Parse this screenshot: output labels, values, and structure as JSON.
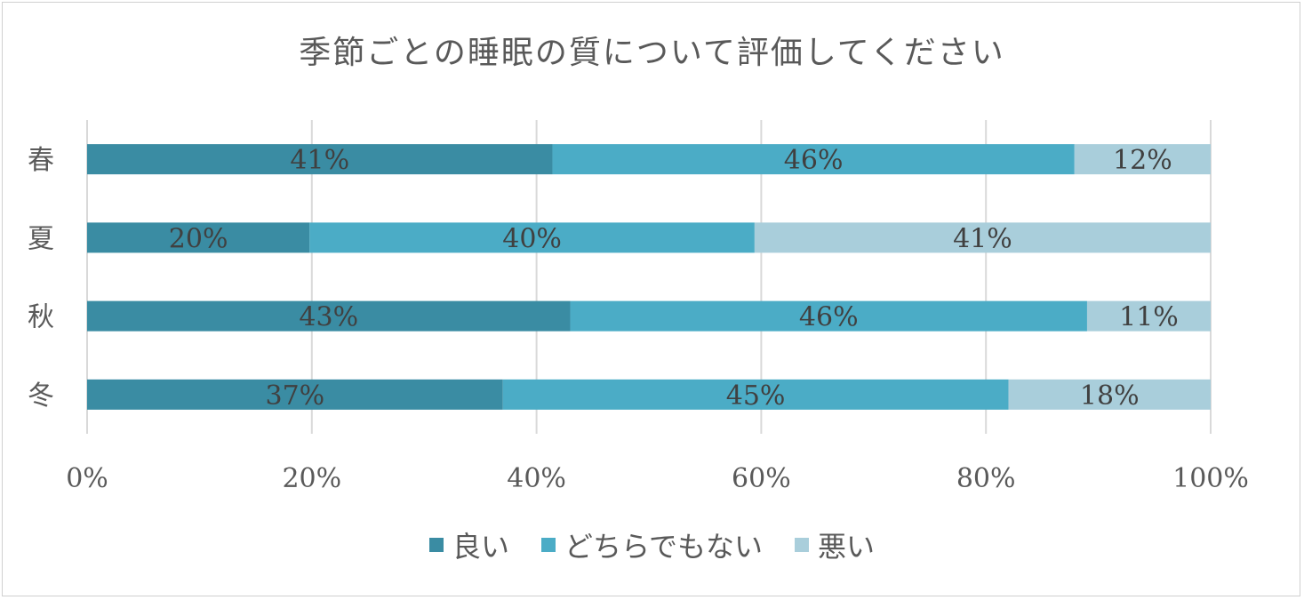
{
  "chart_data": {
    "type": "bar",
    "orientation": "horizontal",
    "stacked": "percent",
    "title": "季節ごとの睡眠の質について評価してください",
    "categories": [
      "春",
      "夏",
      "秋",
      "冬"
    ],
    "series": [
      {
        "name": "良い",
        "color": "#3a8ca3",
        "values": [
          41,
          20,
          43,
          37
        ]
      },
      {
        "name": "どちらでもない",
        "color": "#4bacc6",
        "values": [
          46,
          40,
          46,
          45
        ]
      },
      {
        "name": "悪い",
        "color": "#a9cedb",
        "values": [
          12,
          41,
          11,
          18
        ]
      }
    ],
    "xlim": [
      0,
      100
    ],
    "xticks": [
      "0%",
      "20%",
      "40%",
      "60%",
      "80%",
      "100%"
    ],
    "grid": true,
    "legend_position": "bottom"
  }
}
